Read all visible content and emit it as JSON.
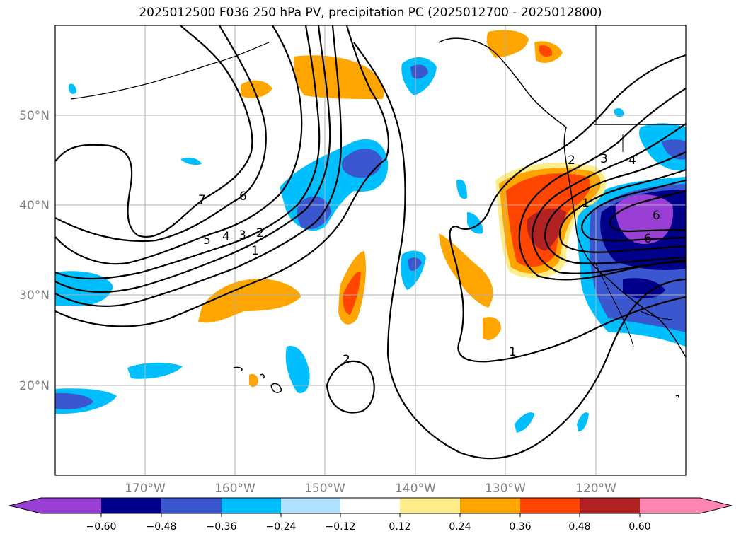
{
  "title": "2025012500 F036 250 hPa PV, precipitation PC (2025012700 - 2025012800)",
  "lat_labels": [
    "50°N",
    "40°N",
    "30°N",
    "20°N"
  ],
  "lon_labels": [
    "170°W",
    "160°W",
    "150°W",
    "140°W",
    "130°W",
    "120°W"
  ],
  "contour_labels": [
    "7",
    "6",
    "5",
    "4",
    "3",
    "2",
    "1",
    "2",
    "1",
    "2",
    "3",
    "4",
    "1",
    "6",
    "6"
  ],
  "colorbar": {
    "ticks": [
      "−0.60",
      "−0.48",
      "−0.36",
      "−0.24",
      "−0.12",
      "0.12",
      "0.24",
      "0.36",
      "0.48",
      "0.60"
    ],
    "colors": [
      "#9a3fd6",
      "#00008b",
      "#3b57cf",
      "#00bfff",
      "#b0e2ff",
      "#ffffff",
      "#ffec8b",
      "#ffa500",
      "#ff4500",
      "#b22222",
      "#ff85b2"
    ]
  }
}
